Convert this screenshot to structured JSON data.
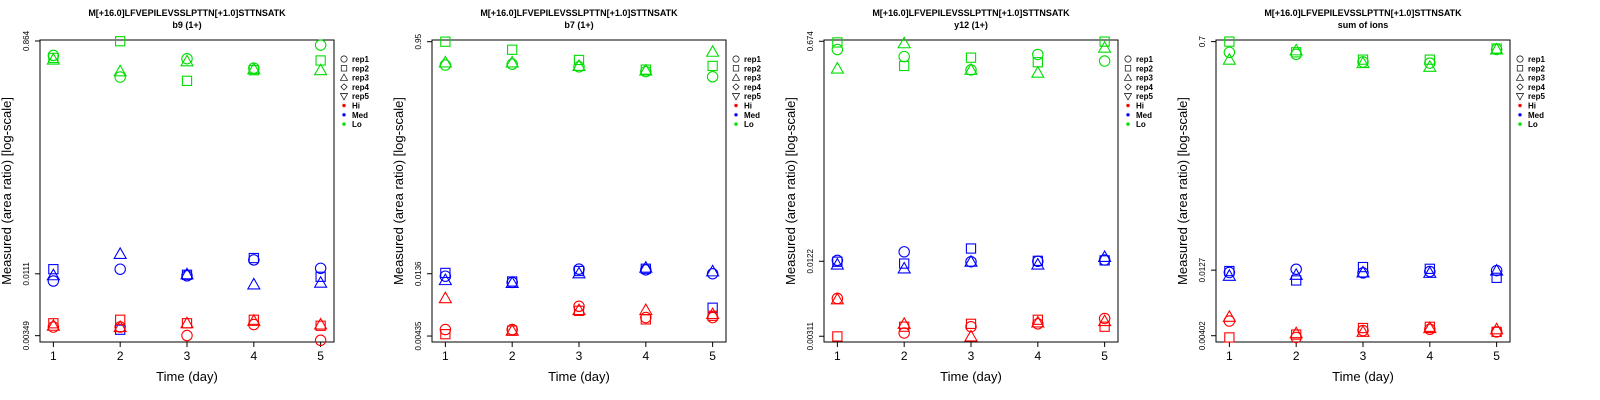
{
  "legend": {
    "reps": [
      "rep1",
      "rep2",
      "rep3",
      "rep4",
      "rep5"
    ],
    "levels": [
      "Hi",
      "Med",
      "Lo"
    ]
  },
  "colors": {
    "Hi": "#ff0000",
    "Med": "#0000ff",
    "Lo": "#00dd00"
  },
  "chart_data": [
    {
      "type": "scatter",
      "title": "M[+16.0]LFVEPILEVSSLPTTN[+1.0]STTNSATK",
      "subtitle": "b9 (1+)",
      "xlabel": "Time (day)",
      "ylabel": "Measured (area ratio) [log-scale]",
      "x_ticks": [
        1,
        2,
        3,
        4,
        5
      ],
      "y_ticks": [
        0.00349,
        0.0111,
        0.864
      ],
      "y_tick_labels": [
        "0.00349",
        "0.0111",
        "0.864"
      ],
      "y_scale": "log",
      "ylim": [
        0.0031,
        0.88
      ],
      "xlim": [
        0.8,
        5.2
      ],
      "series": [
        {
          "level": "Lo",
          "rep": "rep1",
          "x": [
            1,
            2,
            3,
            4,
            5
          ],
          "y": [
            0.66,
            0.44,
            0.62,
            0.52,
            0.8
          ]
        },
        {
          "level": "Lo",
          "rep": "rep2",
          "x": [
            1,
            2,
            3,
            4,
            5
          ],
          "y": [
            0.63,
            0.86,
            0.41,
            0.5,
            0.6
          ]
        },
        {
          "level": "Lo",
          "rep": "rep3",
          "x": [
            1,
            2,
            3,
            4,
            5
          ],
          "y": [
            0.61,
            0.49,
            0.59,
            0.51,
            0.5
          ]
        },
        {
          "level": "Med",
          "rep": "rep1",
          "x": [
            1,
            2,
            3,
            4,
            5
          ],
          "y": [
            0.0097,
            0.0121,
            0.0107,
            0.0144,
            0.0123
          ]
        },
        {
          "level": "Med",
          "rep": "rep2",
          "x": [
            1,
            2,
            3,
            4,
            5
          ],
          "y": [
            0.0121,
            0.0039,
            0.0109,
            0.0149,
            0.0105
          ]
        },
        {
          "level": "Med",
          "rep": "rep3",
          "x": [
            1,
            2,
            3,
            4,
            5
          ],
          "y": [
            0.0108,
            0.0161,
            0.011,
            0.0091,
            0.0094
          ]
        },
        {
          "level": "Hi",
          "rep": "rep1",
          "x": [
            1,
            2,
            3,
            4,
            5
          ],
          "y": [
            0.0041,
            0.0041,
            0.0035,
            0.0043,
            0.0032
          ]
        },
        {
          "level": "Hi",
          "rep": "rep2",
          "x": [
            1,
            2,
            3,
            4,
            5
          ],
          "y": [
            0.0044,
            0.0047,
            0.0044,
            0.0047,
            0.0042
          ]
        },
        {
          "level": "Hi",
          "rep": "rep3",
          "x": [
            1,
            2,
            3,
            4,
            5
          ],
          "y": [
            0.0042,
            0.0041,
            0.0044,
            0.0046,
            0.0043
          ]
        }
      ]
    },
    {
      "type": "scatter",
      "title": "M[+16.0]LFVEPILEVSSLPTTN[+1.0]STTNSATK",
      "subtitle": "b7 (1+)",
      "xlabel": "Time (day)",
      "ylabel": "Measured (area ratio) [log-scale]",
      "x_ticks": [
        1,
        2,
        3,
        4,
        5
      ],
      "y_ticks": [
        0.00435,
        0.0136,
        0.95
      ],
      "y_tick_labels": [
        "0.00435",
        "0.0136",
        "0.95"
      ],
      "y_scale": "log",
      "ylim": [
        0.0039,
        0.98
      ],
      "xlim": [
        0.8,
        5.2
      ],
      "series": [
        {
          "level": "Lo",
          "rep": "rep1",
          "x": [
            1,
            2,
            3,
            4,
            5
          ],
          "y": [
            0.62,
            0.63,
            0.6,
            0.55,
            0.5
          ]
        },
        {
          "level": "Lo",
          "rep": "rep2",
          "x": [
            1,
            2,
            3,
            4,
            5
          ],
          "y": [
            0.95,
            0.82,
            0.68,
            0.57,
            0.61
          ]
        },
        {
          "level": "Lo",
          "rep": "rep3",
          "x": [
            1,
            2,
            3,
            4,
            5
          ],
          "y": [
            0.65,
            0.65,
            0.61,
            0.56,
            0.79
          ]
        },
        {
          "level": "Med",
          "rep": "rep1",
          "x": [
            1,
            2,
            3,
            4,
            5
          ],
          "y": [
            0.013,
            0.0116,
            0.0148,
            0.0146,
            0.0136
          ]
        },
        {
          "level": "Med",
          "rep": "rep2",
          "x": [
            1,
            2,
            3,
            4,
            5
          ],
          "y": [
            0.0138,
            0.0118,
            0.0143,
            0.0149,
            0.0073
          ]
        },
        {
          "level": "Med",
          "rep": "rep3",
          "x": [
            1,
            2,
            3,
            4,
            5
          ],
          "y": [
            0.0121,
            0.0115,
            0.0137,
            0.0152,
            0.0142
          ]
        },
        {
          "level": "Hi",
          "rep": "rep1",
          "x": [
            1,
            2,
            3,
            4,
            5
          ],
          "y": [
            0.0049,
            0.0049,
            0.0075,
            0.0061,
            0.0061
          ]
        },
        {
          "level": "Hi",
          "rep": "rep2",
          "x": [
            1,
            2,
            3,
            4,
            5
          ],
          "y": [
            0.0045,
            0.0048,
            0.0069,
            0.0059,
            0.0063
          ]
        },
        {
          "level": "Hi",
          "rep": "rep3",
          "x": [
            1,
            2,
            3,
            4,
            5
          ],
          "y": [
            0.0087,
            0.0048,
            0.007,
            0.007,
            0.0065
          ]
        }
      ]
    },
    {
      "type": "scatter",
      "title": "M[+16.0]LFVEPILEVSSLPTTN[+1.0]STTNSATK",
      "subtitle": "y12 (1+)",
      "xlabel": "Time (day)",
      "ylabel": "Measured (area ratio) [log-scale]",
      "x_ticks": [
        1,
        2,
        3,
        4,
        5
      ],
      "y_ticks": [
        0.00311,
        0.0122,
        0.674
      ],
      "y_tick_labels": [
        "0.00311",
        "0.0122",
        "0.674"
      ],
      "y_scale": "log",
      "ylim": [
        0.0028,
        0.69
      ],
      "xlim": [
        0.8,
        5.2
      ],
      "series": [
        {
          "level": "Lo",
          "rep": "rep1",
          "x": [
            1,
            2,
            3,
            4,
            5
          ],
          "y": [
            0.58,
            0.51,
            0.4,
            0.53,
            0.47
          ]
        },
        {
          "level": "Lo",
          "rep": "rep2",
          "x": [
            1,
            2,
            3,
            4,
            5
          ],
          "y": [
            0.66,
            0.43,
            0.5,
            0.46,
            0.67
          ]
        },
        {
          "level": "Lo",
          "rep": "rep3",
          "x": [
            1,
            2,
            3,
            4,
            5
          ],
          "y": [
            0.41,
            0.65,
            0.4,
            0.38,
            0.6
          ]
        },
        {
          "level": "Med",
          "rep": "rep1",
          "x": [
            1,
            2,
            3,
            4,
            5
          ],
          "y": [
            0.0124,
            0.0145,
            0.0121,
            0.0122,
            0.0125
          ]
        },
        {
          "level": "Med",
          "rep": "rep2",
          "x": [
            1,
            2,
            3,
            4,
            5
          ],
          "y": [
            0.0121,
            0.0117,
            0.0154,
            0.0123,
            0.0124
          ]
        },
        {
          "level": "Med",
          "rep": "rep3",
          "x": [
            1,
            2,
            3,
            4,
            5
          ],
          "y": [
            0.0115,
            0.0107,
            0.0121,
            0.0115,
            0.0132
          ]
        },
        {
          "level": "Hi",
          "rep": "rep1",
          "x": [
            1,
            2,
            3,
            4,
            5
          ],
          "y": [
            0.0062,
            0.0033,
            0.0037,
            0.0039,
            0.0043
          ]
        },
        {
          "level": "Hi",
          "rep": "rep2",
          "x": [
            1,
            2,
            3,
            4,
            5
          ],
          "y": [
            0.0031,
            0.0037,
            0.0039,
            0.0042,
            0.0037
          ]
        },
        {
          "level": "Hi",
          "rep": "rep3",
          "x": [
            1,
            2,
            3,
            4,
            5
          ],
          "y": [
            0.0061,
            0.0039,
            0.0031,
            0.004,
            0.0041
          ]
        }
      ]
    },
    {
      "type": "scatter",
      "title": "M[+16.0]LFVEPILEVSSLPTTN[+1.0]STTNSATK",
      "subtitle": "sum of ions",
      "xlabel": "Time (day)",
      "ylabel": "Measured (area ratio) [log-scale]",
      "x_ticks": [
        1,
        2,
        3,
        4,
        5
      ],
      "y_ticks": [
        0.00402,
        0.0127,
        0.7
      ],
      "y_tick_labels": [
        "0.00402",
        "0.0127",
        "0.7"
      ],
      "y_scale": "log",
      "ylim": [
        0.0036,
        0.72
      ],
      "xlim": [
        0.8,
        5.2
      ],
      "series": [
        {
          "level": "Lo",
          "rep": "rep1",
          "x": [
            1,
            2,
            3,
            4,
            5
          ],
          "y": [
            0.58,
            0.56,
            0.49,
            0.48,
            0.61
          ]
        },
        {
          "level": "Lo",
          "rep": "rep2",
          "x": [
            1,
            2,
            3,
            4,
            5
          ],
          "y": [
            0.7,
            0.58,
            0.51,
            0.51,
            0.62
          ]
        },
        {
          "level": "Lo",
          "rep": "rep3",
          "x": [
            1,
            2,
            3,
            4,
            5
          ],
          "y": [
            0.51,
            0.6,
            0.48,
            0.45,
            0.61
          ]
        },
        {
          "level": "Med",
          "rep": "rep1",
          "x": [
            1,
            2,
            3,
            4,
            5
          ],
          "y": [
            0.0122,
            0.0129,
            0.0121,
            0.0124,
            0.0126
          ]
        },
        {
          "level": "Med",
          "rep": "rep2",
          "x": [
            1,
            2,
            3,
            4,
            5
          ],
          "y": [
            0.0125,
            0.0106,
            0.0134,
            0.013,
            0.0111
          ]
        },
        {
          "level": "Med",
          "rep": "rep3",
          "x": [
            1,
            2,
            3,
            4,
            5
          ],
          "y": [
            0.0115,
            0.0117,
            0.0122,
            0.0121,
            0.0126
          ]
        },
        {
          "level": "Hi",
          "rep": "rep1",
          "x": [
            1,
            2,
            3,
            4,
            5
          ],
          "y": [
            0.0052,
            0.0039,
            0.0044,
            0.0045,
            0.0043
          ]
        },
        {
          "level": "Hi",
          "rep": "rep2",
          "x": [
            1,
            2,
            3,
            4,
            5
          ],
          "y": [
            0.0039,
            0.0041,
            0.0046,
            0.0047,
            0.0043
          ]
        },
        {
          "level": "Hi",
          "rep": "rep3",
          "x": [
            1,
            2,
            3,
            4,
            5
          ],
          "y": [
            0.0056,
            0.0042,
            0.0043,
            0.0046,
            0.0045
          ]
        }
      ]
    }
  ]
}
